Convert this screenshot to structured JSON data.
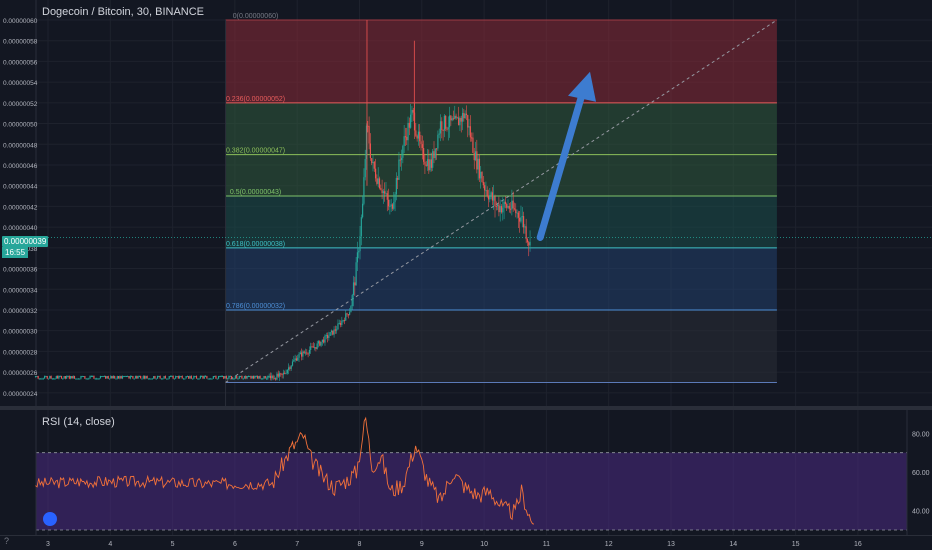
{
  "header": {
    "title": "Dogecoin / Bitcoin, 30, BINANCE"
  },
  "indicator": {
    "label": "RSI (14, close)"
  },
  "price_badge": {
    "price": "0.00000039",
    "countdown": "16:55"
  },
  "corner": {
    "label": "?"
  },
  "colors": {
    "background": "#131722",
    "up": "#26a69a",
    "down": "#ef5350",
    "rsi_line": "#f2713a",
    "rsi_band": "#4a2a82",
    "arrow": "#3d7cd0",
    "fib_red": "#8b2a36",
    "fib_green": "#2f5a3c",
    "fib_teal": "#1c4e4a",
    "fib_blue": "#23406b",
    "fib_gray": "#2a2d37"
  },
  "icons": [
    "tradingview-logo-icon",
    "up-arrow-annotation"
  ],
  "chart_data": [
    {
      "type": "candlestick",
      "ylim": [
        2.35e-07,
        6e-08
      ],
      "y_ticks": [
        "0.00000060",
        "0.00000058",
        "0.00000056",
        "0.00000054",
        "0.00000052",
        "0.00000050",
        "0.00000048",
        "0.00000046",
        "0.00000044",
        "0.00000042",
        "0.00000040",
        "0.00000038",
        "0.00000036",
        "0.00000034",
        "0.00000032",
        "0.00000030",
        "0.00000028",
        "0.00000026",
        "0.00000024"
      ],
      "x_ticks": [
        "3",
        "4",
        "5",
        "6",
        "7",
        "8",
        "9",
        "10",
        "11",
        "12",
        "13",
        "14",
        "15",
        "16"
      ],
      "fib_levels": [
        {
          "label": "0(0.00000060)",
          "ratio": 0,
          "price": 6e-07
        },
        {
          "label": "0.236(0.00000052)",
          "ratio": 0.236,
          "price": 5.2e-07
        },
        {
          "label": "0.382(0.00000047)",
          "ratio": 0.382,
          "price": 4.7e-07
        },
        {
          "label": "0.5(0.00000043)",
          "ratio": 0.5,
          "price": 4.3e-07
        },
        {
          "label": "0.618(0.00000038)",
          "ratio": 0.618,
          "price": 3.8e-07
        },
        {
          "label": "0.786(0.00000032)",
          "ratio": 0.786,
          "price": 3.2e-07
        },
        {
          "label": "",
          "ratio": 1,
          "price": 2.5e-07
        }
      ],
      "fib_range_days": [
        5.85,
        14.7
      ],
      "trend_line": [
        [
          5.85,
          2.5e-07
        ],
        [
          14.7,
          6e-07
        ]
      ],
      "arrow": {
        "from": [
          10.9,
          3.9e-07
        ],
        "to": [
          11.7,
          5.5e-07
        ]
      },
      "path_days": [
        2.8,
        3.5,
        4.5,
        5.5,
        6.5,
        6.75,
        7.0,
        7.3,
        7.6,
        7.85,
        7.95,
        8.05,
        8.12,
        8.2,
        8.35,
        8.5,
        8.7,
        8.85,
        9.0,
        9.15,
        9.3,
        9.55,
        9.7,
        9.85,
        10.0,
        10.2,
        10.4,
        10.6,
        10.75
      ],
      "path_prices": [
        2.55e-07,
        2.55e-07,
        2.55e-07,
        2.55e-07,
        2.55e-07,
        2.56e-07,
        2.75e-07,
        2.85e-07,
        3e-07,
        3.2e-07,
        3.6e-07,
        4.2e-07,
        5e-07,
        4.6e-07,
        4.4e-07,
        4.15e-07,
        4.8e-07,
        5.1e-07,
        4.7e-07,
        4.6e-07,
        5e-07,
        5e-07,
        5.1e-07,
        4.7e-07,
        4.4e-07,
        4.2e-07,
        4.2e-07,
        4.1e-07,
        3.8e-07
      ]
    },
    {
      "type": "line",
      "name": "RSI (14, close)",
      "ylim": [
        30,
        90
      ],
      "y_ticks": [
        "80.00",
        "60.00",
        "40.00"
      ],
      "bands": [
        30,
        70
      ],
      "x": [
        2.8,
        3.5,
        4.5,
        5.5,
        6.6,
        6.9,
        7.1,
        7.2,
        7.4,
        7.6,
        7.8,
        7.95,
        8.1,
        8.2,
        8.35,
        8.5,
        8.7,
        8.9,
        9.1,
        9.3,
        9.5,
        9.7,
        9.9,
        10.1,
        10.3,
        10.5,
        10.6,
        10.75,
        10.8
      ],
      "values": [
        54,
        55,
        55,
        54,
        54,
        72,
        79,
        68,
        58,
        52,
        56,
        60,
        88,
        63,
        68,
        50,
        54,
        74,
        55,
        45,
        60,
        52,
        48,
        50,
        41,
        39,
        50,
        35,
        33
      ]
    }
  ]
}
